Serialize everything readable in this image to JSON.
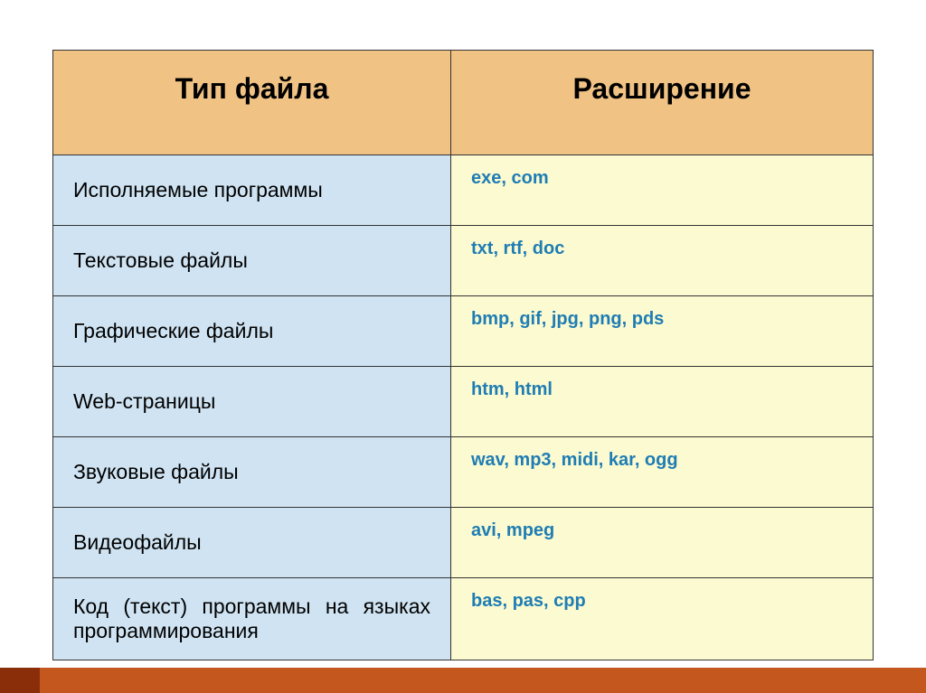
{
  "table": {
    "header_bg": "#f0c284",
    "left_col_bg": "#cfe3f2",
    "right_col_bg": "#fbfad0",
    "border_color": "#333333",
    "right_text_color": "#1f7db4",
    "header_fontsize": 32,
    "left_fontsize": 23,
    "right_fontsize": 20,
    "columns": [
      "Тип файла",
      "Расширение"
    ],
    "rows": [
      {
        "type": "Исполняемые программы",
        "ext": "exe, com"
      },
      {
        "type": "Текстовые файлы",
        "ext": "txt, rtf, doc"
      },
      {
        "type": "Графические файлы",
        "ext": "bmp, gif, jpg, png, pds"
      },
      {
        "type": "Web-страницы",
        "ext": "htm, html"
      },
      {
        "type": "Звуковые файлы",
        "ext": "wav, mp3, midi, kar, ogg"
      },
      {
        "type": "Видеофайлы",
        "ext": "avi, mpeg"
      },
      {
        "type": "Код (текст) программы на языках программирования",
        "ext": "bas, pas, cpp"
      }
    ]
  },
  "accent_stripe_color": "#c4571d",
  "accent_stripe_dark": "#8a2e0a",
  "background_color": "#ffffff"
}
